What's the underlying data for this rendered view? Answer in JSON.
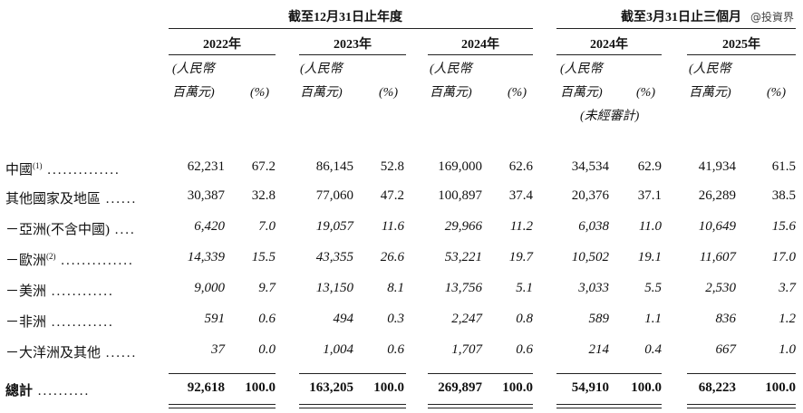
{
  "header": {
    "group_year": "截至12月31日止年度",
    "group_q": "截至3月31日止三個月",
    "watermark": "@投資界"
  },
  "columns": [
    {
      "year": "2022年",
      "amount_label": "(人民幣\n百萬元)",
      "pct_label": "(%)",
      "note": ""
    },
    {
      "year": "2023年",
      "amount_label": "(人民幣\n百萬元)",
      "pct_label": "(%)",
      "note": ""
    },
    {
      "year": "2024年",
      "amount_label": "(人民幣\n百萬元)",
      "pct_label": "(%)",
      "note": ""
    },
    {
      "year": "2024年",
      "amount_label": "(人民幣\n百萬元)",
      "pct_label": "(%)",
      "note": "(未經審計)"
    },
    {
      "year": "2025年",
      "amount_label": "(人民幣\n百萬元)",
      "pct_label": "(%)",
      "note": ""
    }
  ],
  "rows": [
    {
      "label": "中國",
      "sup": "(1)",
      "dots": "..............",
      "style": "normal",
      "values": [
        "62,231",
        "67.2",
        "86,145",
        "52.8",
        "169,000",
        "62.6",
        "34,534",
        "62.9",
        "41,934",
        "61.5"
      ]
    },
    {
      "label": "其他國家及地區",
      "sup": "",
      "dots": "......",
      "style": "normal",
      "values": [
        "30,387",
        "32.8",
        "77,060",
        "47.2",
        "100,897",
        "37.4",
        "20,376",
        "37.1",
        "26,289",
        "38.5"
      ]
    },
    {
      "label": "－亞洲(不含中國)",
      "sup": "",
      "dots": "....",
      "style": "italic",
      "values": [
        "6,420",
        "7.0",
        "19,057",
        "11.6",
        "29,966",
        "11.2",
        "6,038",
        "11.0",
        "10,649",
        "15.6"
      ]
    },
    {
      "label": "－歐洲",
      "sup": "(2)",
      "dots": "..............",
      "style": "italic",
      "values": [
        "14,339",
        "15.5",
        "43,355",
        "26.6",
        "53,221",
        "19.7",
        "10,502",
        "19.1",
        "11,607",
        "17.0"
      ]
    },
    {
      "label": "－美洲",
      "sup": "",
      "dots": "............",
      "style": "italic",
      "values": [
        "9,000",
        "9.7",
        "13,150",
        "8.1",
        "13,756",
        "5.1",
        "3,033",
        "5.5",
        "2,530",
        "3.7"
      ]
    },
    {
      "label": "－非洲",
      "sup": "",
      "dots": "............",
      "style": "italic",
      "values": [
        "591",
        "0.6",
        "494",
        "0.3",
        "2,247",
        "0.8",
        "589",
        "1.1",
        "836",
        "1.2"
      ]
    },
    {
      "label": "－大洋洲及其他",
      "sup": "",
      "dots": "......",
      "style": "italic",
      "values": [
        "37",
        "0.0",
        "1,004",
        "0.6",
        "1,707",
        "0.6",
        "214",
        "0.4",
        "667",
        "1.0"
      ]
    }
  ],
  "total": {
    "label": "總計",
    "dots": "..........",
    "values": [
      "92,618",
      "100.0",
      "163,205",
      "100.0",
      "269,897",
      "100.0",
      "54,910",
      "100.0",
      "68,223",
      "100.0"
    ]
  }
}
